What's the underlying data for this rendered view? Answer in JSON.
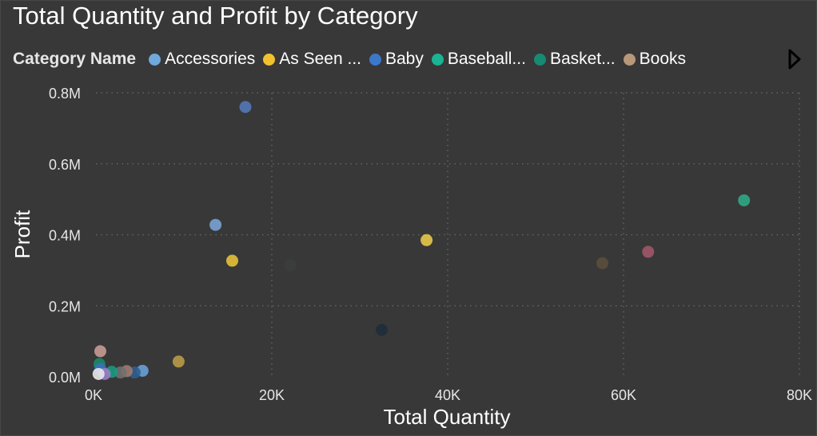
{
  "chart_data": {
    "type": "scatter",
    "title": "Total Quantity and Profit by Category",
    "xlabel": "Total Quantity",
    "ylabel": "Profit",
    "xlim": [
      0,
      80000
    ],
    "ylim": [
      0,
      800000
    ],
    "x_ticks": [
      0,
      20000,
      40000,
      60000,
      80000
    ],
    "x_tick_labels": [
      "0K",
      "20K",
      "40K",
      "60K",
      "80K"
    ],
    "y_ticks": [
      0,
      200000,
      400000,
      600000,
      800000
    ],
    "y_tick_labels": [
      "0.0M",
      "0.2M",
      "0.4M",
      "0.6M",
      "0.8M"
    ],
    "grid": true,
    "legend": {
      "title": "Category Name",
      "placement": "top",
      "items": [
        {
          "label": "Accessories",
          "color": "#6fa8dc"
        },
        {
          "label": "As Seen ...",
          "color": "#f2c12e"
        },
        {
          "label": "Baby",
          "color": "#3c78c8"
        },
        {
          "label": "Baseball...",
          "color": "#1ab394"
        },
        {
          "label": "Basket...",
          "color": "#178a72"
        },
        {
          "label": "Books",
          "color": "#b8987a"
        }
      ]
    },
    "points": [
      {
        "x": 17000,
        "y": 760000,
        "color": "#5478b8"
      },
      {
        "x": 13600,
        "y": 428000,
        "color": "#7aa3d6"
      },
      {
        "x": 15500,
        "y": 327000,
        "color": "#e6c13a"
      },
      {
        "x": 22100,
        "y": 315000,
        "color": "#3a3f3d"
      },
      {
        "x": 37600,
        "y": 385000,
        "color": "#e8c94a"
      },
      {
        "x": 32500,
        "y": 132000,
        "color": "#1f2e3a"
      },
      {
        "x": 57600,
        "y": 320000,
        "color": "#5c4e3c"
      },
      {
        "x": 62800,
        "y": 352000,
        "color": "#a05668"
      },
      {
        "x": 73700,
        "y": 497000,
        "color": "#2fa885"
      },
      {
        "x": 9400,
        "y": 43000,
        "color": "#b89a48"
      },
      {
        "x": 5300,
        "y": 17000,
        "color": "#6aa0d8"
      },
      {
        "x": 4400,
        "y": 12000,
        "color": "#2f5e8f"
      },
      {
        "x": 3500,
        "y": 16000,
        "color": "#9e7a6e"
      },
      {
        "x": 2800,
        "y": 12000,
        "color": "#707070"
      },
      {
        "x": 1800,
        "y": 14000,
        "color": "#1a9a7e"
      },
      {
        "x": 500,
        "y": 72000,
        "color": "#c89a94"
      },
      {
        "x": 400,
        "y": 36000,
        "color": "#178a6a"
      },
      {
        "x": 500,
        "y": 22000,
        "color": "#3c6fb8"
      },
      {
        "x": 1000,
        "y": 8000,
        "color": "#9a80c8"
      },
      {
        "x": 300,
        "y": 8000,
        "color": "#e8e8e8"
      }
    ]
  }
}
